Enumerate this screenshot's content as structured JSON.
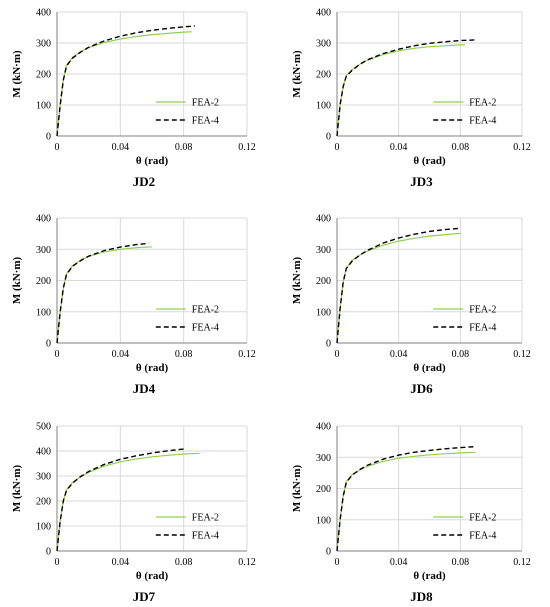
{
  "chart_data": [
    {
      "type": "line",
      "title": "JD2",
      "xlabel": "θ (rad)",
      "ylabel": "M (kN·m)",
      "xlim": [
        0,
        0.12
      ],
      "ylim": [
        0,
        400
      ],
      "xticks": [
        0,
        0.04,
        0.08,
        0.12
      ],
      "xtick_labels": [
        "0",
        "0.04",
        "0.08",
        "0.12"
      ],
      "yticks": [
        0,
        100,
        200,
        300,
        400
      ],
      "ytick_labels": [
        "0",
        "100",
        "200",
        "300",
        "400"
      ],
      "grid": true,
      "legend": "bottom-right",
      "series": [
        {
          "name": "FEA-2",
          "color": "#92d050",
          "dash": "solid",
          "x": [
            0,
            0.002,
            0.004,
            0.006,
            0.01,
            0.015,
            0.02,
            0.03,
            0.04,
            0.05,
            0.06,
            0.07,
            0.08,
            0.085
          ],
          "y": [
            0,
            100,
            180,
            228,
            255,
            272,
            285,
            302,
            313,
            321,
            327,
            331,
            335,
            336
          ]
        },
        {
          "name": "FEA-4",
          "color": "#000000",
          "dash": "dashed",
          "x": [
            0,
            0.002,
            0.004,
            0.006,
            0.01,
            0.015,
            0.02,
            0.03,
            0.04,
            0.05,
            0.06,
            0.07,
            0.08,
            0.087
          ],
          "y": [
            0,
            100,
            180,
            226,
            252,
            271,
            286,
            307,
            322,
            333,
            341,
            347,
            352,
            355
          ]
        }
      ]
    },
    {
      "type": "line",
      "title": "JD3",
      "xlabel": "θ (rad)",
      "ylabel": "M (kN·m)",
      "xlim": [
        0,
        0.12
      ],
      "ylim": [
        0,
        400
      ],
      "xticks": [
        0,
        0.04,
        0.08,
        0.12
      ],
      "xtick_labels": [
        "0",
        "0.04",
        "0.08",
        "0.12"
      ],
      "yticks": [
        0,
        100,
        200,
        300,
        400
      ],
      "ytick_labels": [
        "0",
        "100",
        "200",
        "300",
        "400"
      ],
      "grid": true,
      "legend": "bottom-right",
      "series": [
        {
          "name": "FEA-2",
          "color": "#92d050",
          "dash": "solid",
          "x": [
            0,
            0.002,
            0.004,
            0.006,
            0.01,
            0.015,
            0.02,
            0.03,
            0.04,
            0.05,
            0.06,
            0.07,
            0.08,
            0.083
          ],
          "y": [
            0,
            100,
            160,
            195,
            215,
            232,
            245,
            263,
            275,
            283,
            288,
            291,
            294,
            294
          ]
        },
        {
          "name": "FEA-4",
          "color": "#000000",
          "dash": "dashed",
          "x": [
            0,
            0.002,
            0.004,
            0.006,
            0.01,
            0.015,
            0.02,
            0.03,
            0.04,
            0.05,
            0.06,
            0.07,
            0.08,
            0.09
          ],
          "y": [
            0,
            100,
            160,
            193,
            213,
            232,
            246,
            266,
            280,
            291,
            299,
            304,
            308,
            310
          ]
        }
      ]
    },
    {
      "type": "line",
      "title": "JD4",
      "xlabel": "θ (rad)",
      "ylabel": "M (kN·m)",
      "xlim": [
        0,
        0.12
      ],
      "ylim": [
        0,
        400
      ],
      "xticks": [
        0,
        0.04,
        0.08,
        0.12
      ],
      "xtick_labels": [
        "0",
        "0.04",
        "0.08",
        "0.12"
      ],
      "yticks": [
        0,
        100,
        200,
        300,
        400
      ],
      "ytick_labels": [
        "0",
        "100",
        "200",
        "300",
        "400"
      ],
      "grid": true,
      "legend": "bottom-right",
      "series": [
        {
          "name": "FEA-2",
          "color": "#92d050",
          "dash": "solid",
          "x": [
            0,
            0.002,
            0.004,
            0.006,
            0.01,
            0.015,
            0.02,
            0.03,
            0.04,
            0.05,
            0.06
          ],
          "y": [
            0,
            100,
            175,
            222,
            248,
            265,
            277,
            292,
            300,
            305,
            308
          ]
        },
        {
          "name": "FEA-4",
          "color": "#000000",
          "dash": "dashed",
          "x": [
            0,
            0.002,
            0.004,
            0.006,
            0.01,
            0.015,
            0.02,
            0.03,
            0.04,
            0.05,
            0.058
          ],
          "y": [
            0,
            100,
            175,
            220,
            246,
            264,
            278,
            296,
            307,
            315,
            319
          ]
        }
      ]
    },
    {
      "type": "line",
      "title": "JD6",
      "xlabel": "θ (rad)",
      "ylabel": "M (kN·m)",
      "xlim": [
        0,
        0.12
      ],
      "ylim": [
        0,
        400
      ],
      "xticks": [
        0,
        0.04,
        0.08,
        0.12
      ],
      "xtick_labels": [
        "0",
        "0.04",
        "0.08",
        "0.12"
      ],
      "yticks": [
        0,
        100,
        200,
        300,
        400
      ],
      "ytick_labels": [
        "0",
        "100",
        "200",
        "300",
        "400"
      ],
      "grid": true,
      "legend": "bottom-right",
      "series": [
        {
          "name": "FEA-2",
          "color": "#92d050",
          "dash": "solid",
          "x": [
            0,
            0.002,
            0.004,
            0.006,
            0.01,
            0.015,
            0.02,
            0.03,
            0.04,
            0.05,
            0.06,
            0.07,
            0.08
          ],
          "y": [
            0,
            110,
            195,
            240,
            265,
            282,
            295,
            313,
            326,
            335,
            342,
            347,
            351
          ]
        },
        {
          "name": "FEA-4",
          "color": "#000000",
          "dash": "dashed",
          "x": [
            0,
            0.002,
            0.004,
            0.006,
            0.01,
            0.015,
            0.02,
            0.03,
            0.04,
            0.05,
            0.06,
            0.07,
            0.08
          ],
          "y": [
            0,
            110,
            195,
            238,
            263,
            282,
            297,
            320,
            336,
            348,
            357,
            363,
            367
          ]
        }
      ]
    },
    {
      "type": "line",
      "title": "JD7",
      "xlabel": "θ (rad)",
      "ylabel": "M (kN·m)",
      "xlim": [
        0,
        0.12
      ],
      "ylim": [
        0,
        500
      ],
      "xticks": [
        0,
        0.04,
        0.08,
        0.12
      ],
      "xtick_labels": [
        "0",
        "0.04",
        "0.08",
        "0.12"
      ],
      "yticks": [
        0,
        100,
        200,
        300,
        400,
        500
      ],
      "ytick_labels": [
        "0",
        "100",
        "200",
        "300",
        "400",
        "500"
      ],
      "grid": true,
      "legend": "bottom-right",
      "series": [
        {
          "name": "FEA-2",
          "color": "#92d050",
          "dash": "solid",
          "x": [
            0,
            0.002,
            0.004,
            0.006,
            0.01,
            0.015,
            0.02,
            0.03,
            0.04,
            0.05,
            0.06,
            0.07,
            0.08,
            0.09
          ],
          "y": [
            0,
            120,
            200,
            245,
            275,
            298,
            315,
            340,
            357,
            368,
            377,
            383,
            388,
            391
          ]
        },
        {
          "name": "FEA-4",
          "color": "#000000",
          "dash": "dashed",
          "x": [
            0,
            0.002,
            0.004,
            0.006,
            0.01,
            0.015,
            0.02,
            0.03,
            0.04,
            0.05,
            0.06,
            0.07,
            0.08
          ],
          "y": [
            0,
            120,
            200,
            243,
            273,
            298,
            318,
            347,
            367,
            381,
            392,
            401,
            408
          ]
        }
      ]
    },
    {
      "type": "line",
      "title": "JD8",
      "xlabel": "θ (rad)",
      "ylabel": "M (kN·m)",
      "xlim": [
        0,
        0.12
      ],
      "ylim": [
        0,
        400
      ],
      "xticks": [
        0,
        0.04,
        0.08,
        0.12
      ],
      "xtick_labels": [
        "0",
        "0.04",
        "0.08",
        "0.12"
      ],
      "yticks": [
        0,
        100,
        200,
        300,
        400
      ],
      "ytick_labels": [
        "0",
        "100",
        "200",
        "300",
        "400"
      ],
      "grid": true,
      "legend": "bottom-right",
      "series": [
        {
          "name": "FEA-2",
          "color": "#92d050",
          "dash": "solid",
          "x": [
            0,
            0.002,
            0.004,
            0.006,
            0.01,
            0.015,
            0.02,
            0.03,
            0.04,
            0.05,
            0.06,
            0.07,
            0.08,
            0.09
          ],
          "y": [
            0,
            100,
            175,
            222,
            245,
            260,
            272,
            287,
            297,
            303,
            308,
            311,
            314,
            316
          ]
        },
        {
          "name": "FEA-4",
          "color": "#000000",
          "dash": "dashed",
          "x": [
            0,
            0.002,
            0.004,
            0.006,
            0.01,
            0.015,
            0.02,
            0.03,
            0.04,
            0.05,
            0.06,
            0.07,
            0.08,
            0.09
          ],
          "y": [
            0,
            100,
            175,
            220,
            244,
            261,
            275,
            294,
            307,
            316,
            322,
            327,
            331,
            334
          ]
        }
      ]
    }
  ]
}
